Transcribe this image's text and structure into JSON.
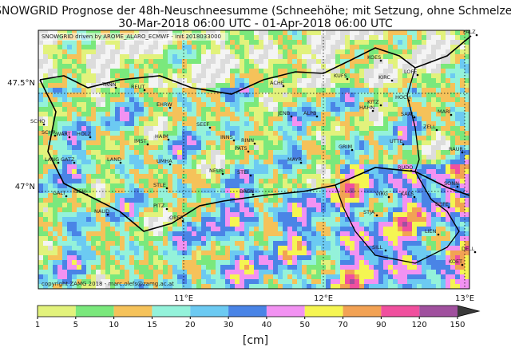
{
  "header": {
    "title": "SNOWGRID Prognose der 48h-Neuschneesumme (Schneehöhe; mit Setzung, ohne Schmelze)",
    "subtitle": "30-Mar-2018 06:00 UTC - 01-Apr-2018 06:00 UTC"
  },
  "map": {
    "credit": "SNOWGRID driven by AROME_ALARO_ECMWF - init 2018033000",
    "copyright": "copyright ZAMG 2018 - marc.olefs@zamg.ac.at",
    "lat_labels": [
      "47.5°N",
      "47°N"
    ],
    "lon_labels": [
      "11°E",
      "12°E",
      "13°E"
    ],
    "stations": [
      "FALZ",
      "KOES",
      "KUFS",
      "LOFE",
      "KIRC",
      "TANN",
      "REUT",
      "ACHE",
      "EHRW",
      "KITZ",
      "HAHN",
      "MARI",
      "HOCH",
      "SAAL",
      "JENB",
      "ALPB",
      "SCHO",
      "SEEF",
      "ZELL",
      "SCHR",
      "WART",
      "HOLZ",
      "HAIM",
      "INNS",
      "RINN",
      "IMST",
      "UTTE",
      "PATS",
      "GRIM",
      "RAUR",
      "LANG",
      "GATZ",
      "LAND",
      "UMHA",
      "MAYR",
      "NEUS",
      "STEI",
      "RUDO",
      "SONN",
      "STLE",
      "ISCH",
      "GALT",
      "NAUD",
      "BREN",
      "VIRG",
      "KALS",
      "DEFE",
      "STJA",
      "PITZ",
      "OBER",
      "LIEN",
      "SILL",
      "DELL",
      "KOET"
    ]
  },
  "colorbar": {
    "label": "[cm]",
    "ticks": [
      1,
      5,
      10,
      15,
      20,
      30,
      40,
      50,
      70,
      90,
      120,
      150
    ],
    "colors": [
      "#e2f27c",
      "#7ae87c",
      "#f5c25a",
      "#94f2da",
      "#6ccaf2",
      "#4a84e6",
      "#f292f2",
      "#f5f552",
      "#f2a254",
      "#f0509e",
      "#a0509e"
    ],
    "extend_color": "#3a3a3a"
  }
}
